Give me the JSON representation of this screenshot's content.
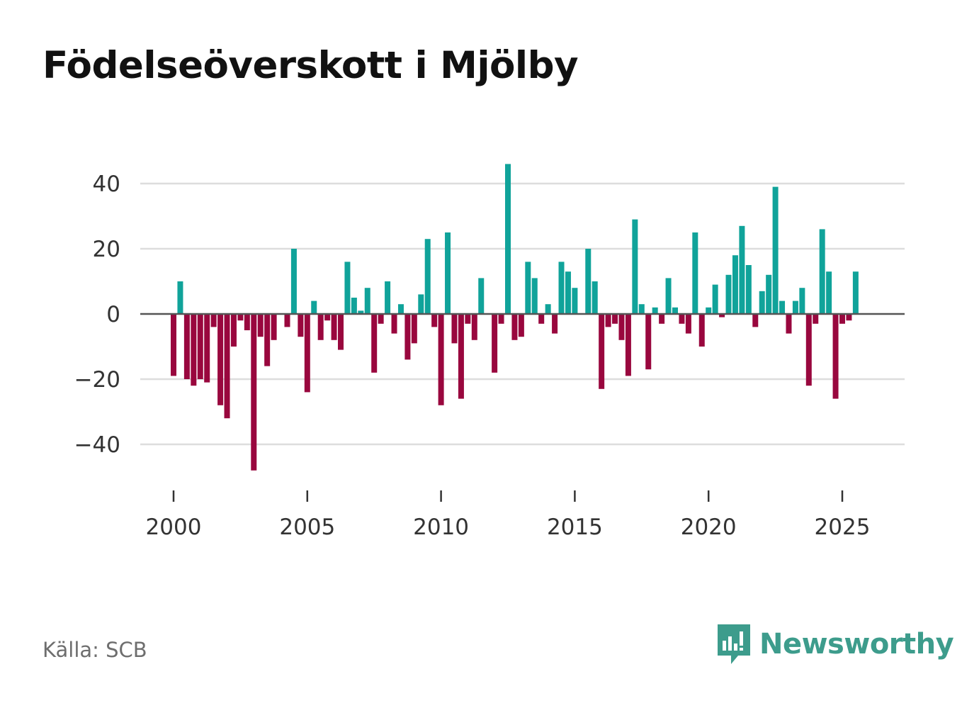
{
  "header": {
    "title": "Födelseöverskott i Mjölby"
  },
  "footer": {
    "source": "Källa: SCB",
    "brand": "Newsworthy",
    "logo_icon": "newsworthy-logo-icon"
  },
  "colors": {
    "positive": "#10a39a",
    "negative": "#99073e",
    "grid": "#dddddd",
    "zero_line": "#555555"
  },
  "chart_data": {
    "type": "bar",
    "title": "Födelseöverskott i Mjölby",
    "xlabel": "",
    "ylabel": "",
    "x_start": 2000.0,
    "x_step": 0.25,
    "xlim": [
      1999.0,
      2027.5
    ],
    "ylim": [
      -50,
      50
    ],
    "x_ticks": [
      2000,
      2005,
      2010,
      2015,
      2020,
      2025
    ],
    "x_tick_labels": [
      "2000",
      "2005",
      "2010",
      "2015",
      "2020",
      "2025"
    ],
    "y_ticks": [
      40,
      20,
      0,
      -20,
      -40
    ],
    "y_tick_labels": [
      "40",
      "20",
      "0",
      "−20",
      "−40"
    ],
    "grid": true,
    "series": [
      {
        "name": "Födelseöverskott",
        "values": [
          -19,
          10,
          -20,
          -22,
          -20,
          -21,
          -4,
          -28,
          -32,
          -10,
          -2,
          -5,
          -48,
          -7,
          -16,
          -8,
          0,
          -4,
          20,
          -7,
          -24,
          4,
          -8,
          -2,
          -8,
          -11,
          16,
          5,
          1,
          8,
          -18,
          -3,
          10,
          -6,
          3,
          -14,
          -9,
          6,
          23,
          -4,
          -28,
          25,
          -9,
          -26,
          -3,
          -8,
          11,
          0,
          -18,
          -3,
          46,
          -8,
          -7,
          16,
          11,
          -3,
          3,
          -6,
          16,
          13,
          8,
          0,
          20,
          10,
          -23,
          -4,
          -3,
          -8,
          -19,
          29,
          3,
          -17,
          2,
          -3,
          11,
          2,
          -3,
          -6,
          25,
          -10,
          2,
          9,
          -1,
          12,
          18,
          27,
          15,
          -4,
          7,
          12,
          39,
          4,
          -6,
          4,
          8,
          -22,
          -3,
          26,
          13,
          -26,
          -3,
          -2,
          13
        ]
      }
    ]
  }
}
